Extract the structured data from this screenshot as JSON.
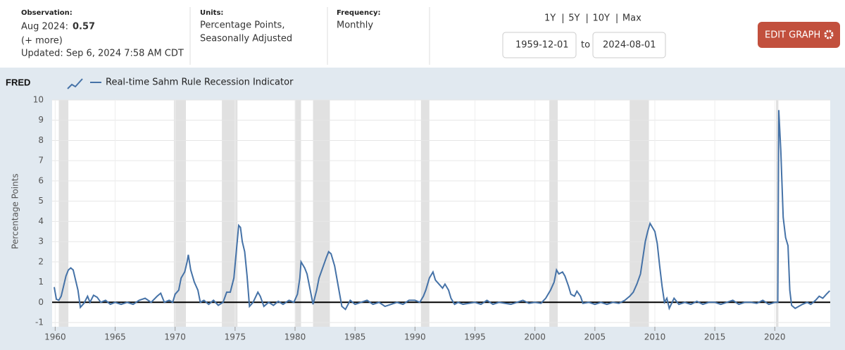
{
  "header": {
    "observation": {
      "label": "Observation:",
      "date": "Aug 2024:",
      "value": "0.57",
      "more": "(+ more)",
      "updated": "Updated: Sep 6, 2024 7:58 AM CDT"
    },
    "units": {
      "label": "Units:",
      "lines": [
        "Percentage Points,",
        "Seasonally Adjusted"
      ]
    },
    "frequency": {
      "label": "Frequency:",
      "value": "Monthly"
    },
    "ranges": [
      "1Y",
      "5Y",
      "10Y",
      "Max"
    ],
    "start_date": "1959-12-01",
    "to": "to",
    "end_date": "2024-08-01",
    "button": "EDIT GRAPH"
  },
  "chart_data": {
    "type": "line",
    "logo": "FRED",
    "ylabel": "Percentage Points",
    "xlim": [
      1959.92,
      2024.62
    ],
    "ylim": [
      -1,
      10
    ],
    "xticks": [
      1960,
      1965,
      1970,
      1975,
      1980,
      1985,
      1990,
      1995,
      2000,
      2005,
      2010,
      2015,
      2020
    ],
    "yticks": [
      -1,
      0,
      1,
      2,
      3,
      4,
      5,
      6,
      7,
      8,
      9,
      10
    ],
    "grid": true,
    "baseline": 0,
    "recession_color": "#e1e1e1",
    "recessions": [
      [
        1960.3,
        1961.1
      ],
      [
        1969.9,
        1970.9
      ],
      [
        1973.9,
        1975.2
      ],
      [
        1980.0,
        1980.5
      ],
      [
        1981.5,
        1982.9
      ],
      [
        1990.5,
        1991.2
      ],
      [
        2001.2,
        2001.9
      ],
      [
        2007.9,
        2009.5
      ],
      [
        2020.1,
        2020.3
      ]
    ],
    "x": [
      1959.92,
      1960.1,
      1960.3,
      1960.5,
      1960.7,
      1960.9,
      1961.1,
      1961.3,
      1961.5,
      1961.7,
      1961.9,
      1962.1,
      1962.4,
      1962.7,
      1962.9,
      1963.2,
      1963.5,
      1963.8,
      1964.2,
      1964.6,
      1965,
      1965.5,
      1966,
      1966.5,
      1967,
      1967.5,
      1968,
      1968.5,
      1968.8,
      1969.1,
      1969.5,
      1969.8,
      1970.0,
      1970.3,
      1970.5,
      1970.8,
      1971.0,
      1971.1,
      1971.3,
      1971.6,
      1971.9,
      1972.1,
      1972.4,
      1972.8,
      1973.2,
      1973.6,
      1974.0,
      1974.3,
      1974.6,
      1974.9,
      1975.1,
      1975.3,
      1975.45,
      1975.6,
      1975.8,
      1976.0,
      1976.2,
      1976.5,
      1976.9,
      1977.1,
      1977.4,
      1977.8,
      1978.2,
      1978.6,
      1979.0,
      1979.5,
      1979.9,
      1980.2,
      1980.4,
      1980.5,
      1980.8,
      1981.0,
      1981.3,
      1981.5,
      1981.8,
      1982.0,
      1982.3,
      1982.6,
      1982.8,
      1983.0,
      1983.3,
      1983.6,
      1983.9,
      1984.2,
      1984.6,
      1985.0,
      1985.5,
      1986.0,
      1986.5,
      1987.0,
      1987.5,
      1988,
      1988.5,
      1989,
      1989.5,
      1990.0,
      1990.4,
      1990.7,
      1990.9,
      1991.2,
      1991.5,
      1991.7,
      1992.0,
      1992.3,
      1992.5,
      1992.8,
      1993.0,
      1993.3,
      1993.6,
      1994,
      1995,
      1995.5,
      1996,
      1996.5,
      1997,
      1998,
      1998.5,
      1999,
      1999.5,
      2000.0,
      2000.5,
      2000.9,
      2001.3,
      2001.6,
      2001.8,
      2002.0,
      2002.3,
      2002.5,
      2002.8,
      2003.0,
      2003.3,
      2003.5,
      2003.8,
      2004.0,
      2004.5,
      2005,
      2005.5,
      2006,
      2006.5,
      2007,
      2007.5,
      2007.9,
      2008.2,
      2008.5,
      2008.8,
      2009.0,
      2009.2,
      2009.4,
      2009.6,
      2009.8,
      2010.0,
      2010.2,
      2010.4,
      2010.6,
      2010.8,
      2011.0,
      2011.2,
      2011.6,
      2012.0,
      2012.5,
      2013,
      2013.5,
      2014,
      2014.5,
      2015,
      2015.5,
      2016,
      2016.5,
      2017,
      2017.5,
      2018,
      2018.5,
      2019,
      2019.5,
      2020.0,
      2020.25,
      2020.33,
      2020.5,
      2020.7,
      2020.9,
      2021.1,
      2021.25,
      2021.4,
      2021.7,
      2022.0,
      2022.3,
      2022.7,
      2023.0,
      2023.4,
      2023.7,
      2024.0,
      2024.3,
      2024.58
    ],
    "series": [
      {
        "name": "Real-time Sahm Rule Recession Indicator",
        "color": "#4572a7",
        "values": [
          0.75,
          0.15,
          0.1,
          0.3,
          0.8,
          1.3,
          1.6,
          1.7,
          1.6,
          1.1,
          0.6,
          -0.25,
          -0.05,
          0.3,
          0.0,
          0.35,
          0.25,
          0.0,
          0.1,
          -0.1,
          0.0,
          -0.1,
          0.0,
          -0.1,
          0.1,
          0.2,
          0.0,
          0.3,
          0.45,
          0.0,
          0.1,
          0.0,
          0.4,
          0.6,
          1.2,
          1.5,
          2.0,
          2.35,
          1.6,
          1.0,
          0.6,
          0.0,
          0.1,
          -0.1,
          0.1,
          -0.15,
          0.0,
          0.5,
          0.5,
          1.2,
          2.5,
          3.8,
          3.7,
          3.0,
          2.5,
          1.3,
          -0.2,
          0.0,
          0.5,
          0.3,
          -0.2,
          0.0,
          -0.15,
          0.05,
          -0.1,
          0.1,
          0.0,
          0.4,
          1.2,
          2.0,
          1.7,
          1.4,
          0.5,
          -0.1,
          0.6,
          1.2,
          1.7,
          2.2,
          2.5,
          2.4,
          1.8,
          0.8,
          -0.2,
          -0.35,
          0.1,
          -0.1,
          0.0,
          0.1,
          -0.1,
          0.0,
          -0.2,
          -0.1,
          0.0,
          -0.1,
          0.1,
          0.1,
          0.0,
          0.3,
          0.6,
          1.2,
          1.5,
          1.1,
          0.9,
          0.7,
          0.9,
          0.6,
          0.2,
          -0.1,
          0.0,
          -0.1,
          0.0,
          -0.1,
          0.1,
          -0.1,
          0.0,
          -0.1,
          0.0,
          0.1,
          -0.05,
          0.0,
          -0.05,
          0.2,
          0.6,
          1.0,
          1.6,
          1.4,
          1.5,
          1.3,
          0.8,
          0.4,
          0.3,
          0.55,
          0.3,
          -0.05,
          0.0,
          -0.1,
          0.0,
          -0.1,
          0.0,
          -0.05,
          0.1,
          0.3,
          0.5,
          0.9,
          1.4,
          2.2,
          3.0,
          3.5,
          3.9,
          3.7,
          3.5,
          2.9,
          1.8,
          0.8,
          0.0,
          0.2,
          -0.3,
          0.2,
          -0.1,
          0.0,
          -0.1,
          0.05,
          -0.1,
          0.0,
          0.0,
          -0.1,
          0.0,
          0.1,
          -0.1,
          0.0,
          0.0,
          -0.05,
          0.1,
          -0.1,
          0.0,
          0.0,
          9.5,
          7.5,
          4.2,
          3.2,
          2.8,
          0.6,
          -0.15,
          -0.3,
          -0.2,
          -0.1,
          0.0,
          -0.1,
          0.1,
          0.3,
          0.2,
          0.4,
          0.57
        ]
      }
    ]
  }
}
